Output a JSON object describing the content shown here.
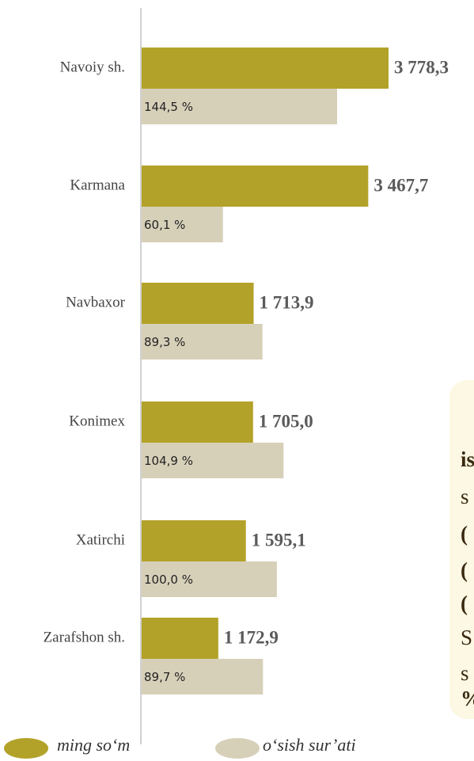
{
  "chart_data": {
    "type": "bar",
    "orientation": "horizontal",
    "categories": [
      "Navoiy sh.",
      "Karmana",
      "Navbaxor",
      "Konimex",
      "Xatirchi",
      "Zarafshon sh."
    ],
    "series": [
      {
        "name": "ming so‘m",
        "color": "#b3a229",
        "values": [
          3778.3,
          3467.7,
          1713.9,
          1705.0,
          1595.1,
          1172.9
        ],
        "value_labels": [
          "3 778,3",
          "3 467,7",
          "1 713,9",
          "1 705,0",
          "1 595,1",
          "1 172,9"
        ]
      },
      {
        "name": "o‘sish sur’ati",
        "color": "#d7d0b9",
        "values": [
          144.5,
          60.1,
          89.3,
          104.9,
          100.0,
          89.7
        ],
        "value_labels": [
          "144,5 %",
          "60,1 %",
          "89,3 %",
          "104,9 %",
          "100,0 %",
          "89,7 %"
        ]
      }
    ],
    "legend": "bottom"
  },
  "side_note": [
    "is",
    "s",
    "(",
    "(",
    "(",
    "S",
    "s",
    "%"
  ]
}
